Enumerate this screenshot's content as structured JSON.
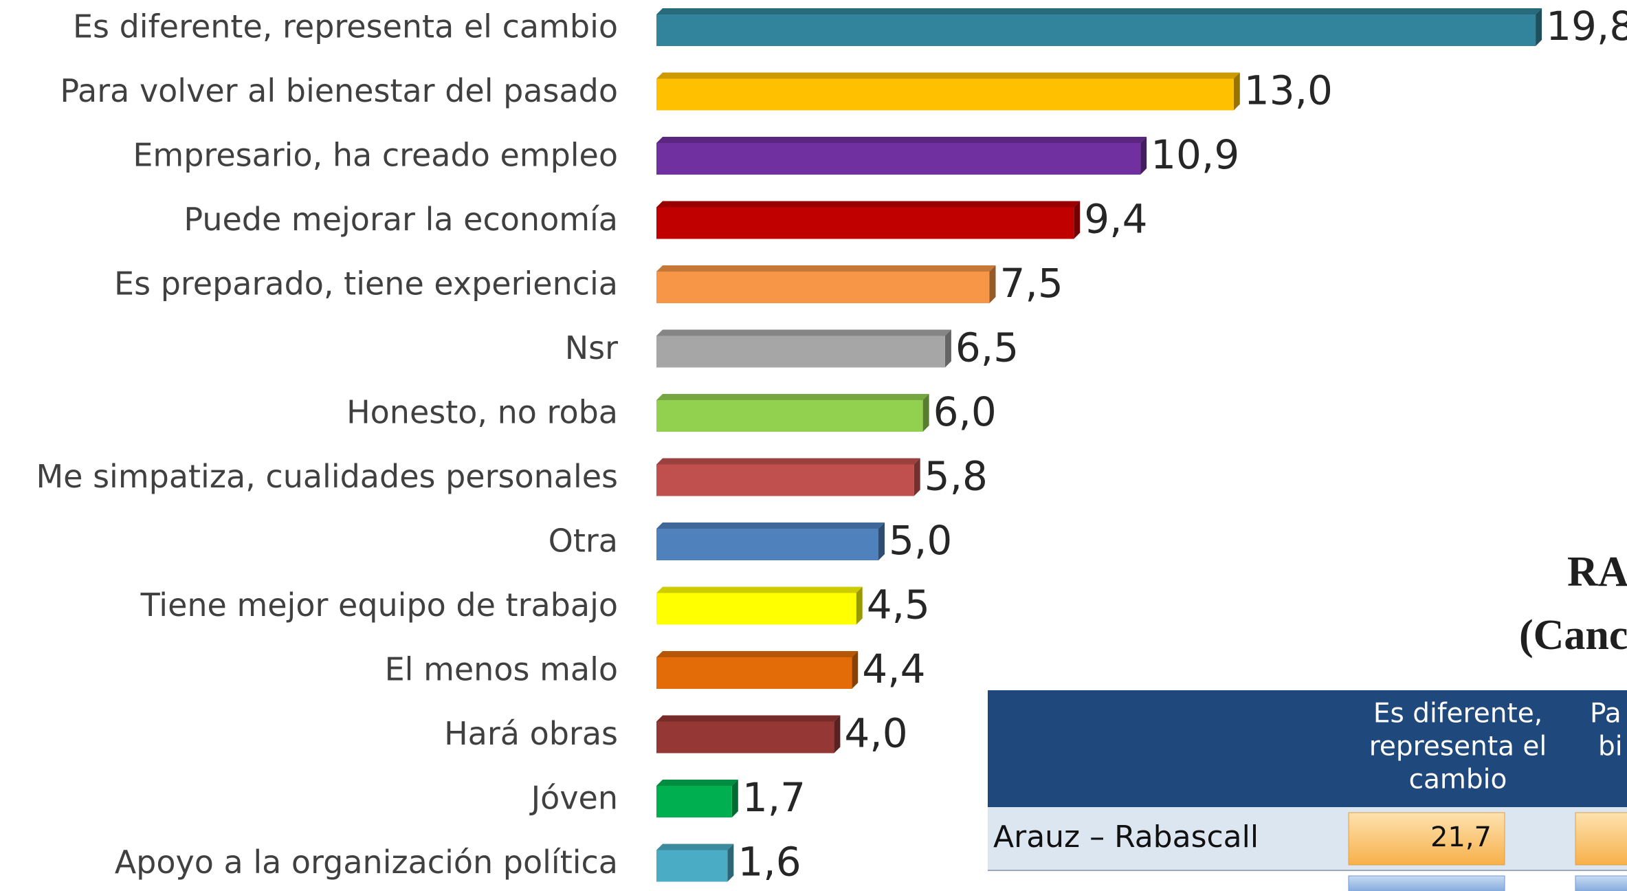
{
  "chart_data": {
    "type": "bar",
    "orientation": "horizontal",
    "categories": [
      "Es diferente, representa el cambio",
      "Para volver al bienestar del pasado",
      "Empresario, ha creado empleo",
      "Puede mejorar la economía",
      "Es preparado, tiene experiencia",
      "Nsr",
      "Honesto, no roba",
      "Me simpatiza, cualidades personales",
      "Otra",
      "Tiene mejor equipo de trabajo",
      "El menos malo",
      "Hará obras",
      "Jóven",
      "Apoyo a la organización política"
    ],
    "values": [
      19.8,
      13.0,
      10.9,
      9.4,
      7.5,
      6.5,
      6.0,
      5.8,
      5.0,
      4.5,
      4.4,
      4.0,
      1.7,
      1.6
    ],
    "value_labels": [
      "19,8",
      "13,0",
      "10,9",
      "9,4",
      "7,5",
      "6,5",
      "6,0",
      "5,8",
      "5,0",
      "4,5",
      "4,4",
      "4,0",
      "1,7",
      "1,6"
    ],
    "colors": [
      "#31849b",
      "#ffc000",
      "#7030a0",
      "#c00000",
      "#f79646",
      "#a6a6a6",
      "#92d050",
      "#c0504d",
      "#4f81bd",
      "#ffff00",
      "#e36c09",
      "#953735",
      "#00b050",
      "#4bacc6"
    ]
  },
  "table": {
    "title": [
      "RA",
      "(Canc"
    ],
    "header": [
      [
        "Es diferente,",
        "representa el",
        "cambio"
      ],
      [
        "Pa",
        "bi"
      ]
    ],
    "rows": [
      [
        "Arauz – Rabascall",
        "21,7"
      ]
    ]
  }
}
